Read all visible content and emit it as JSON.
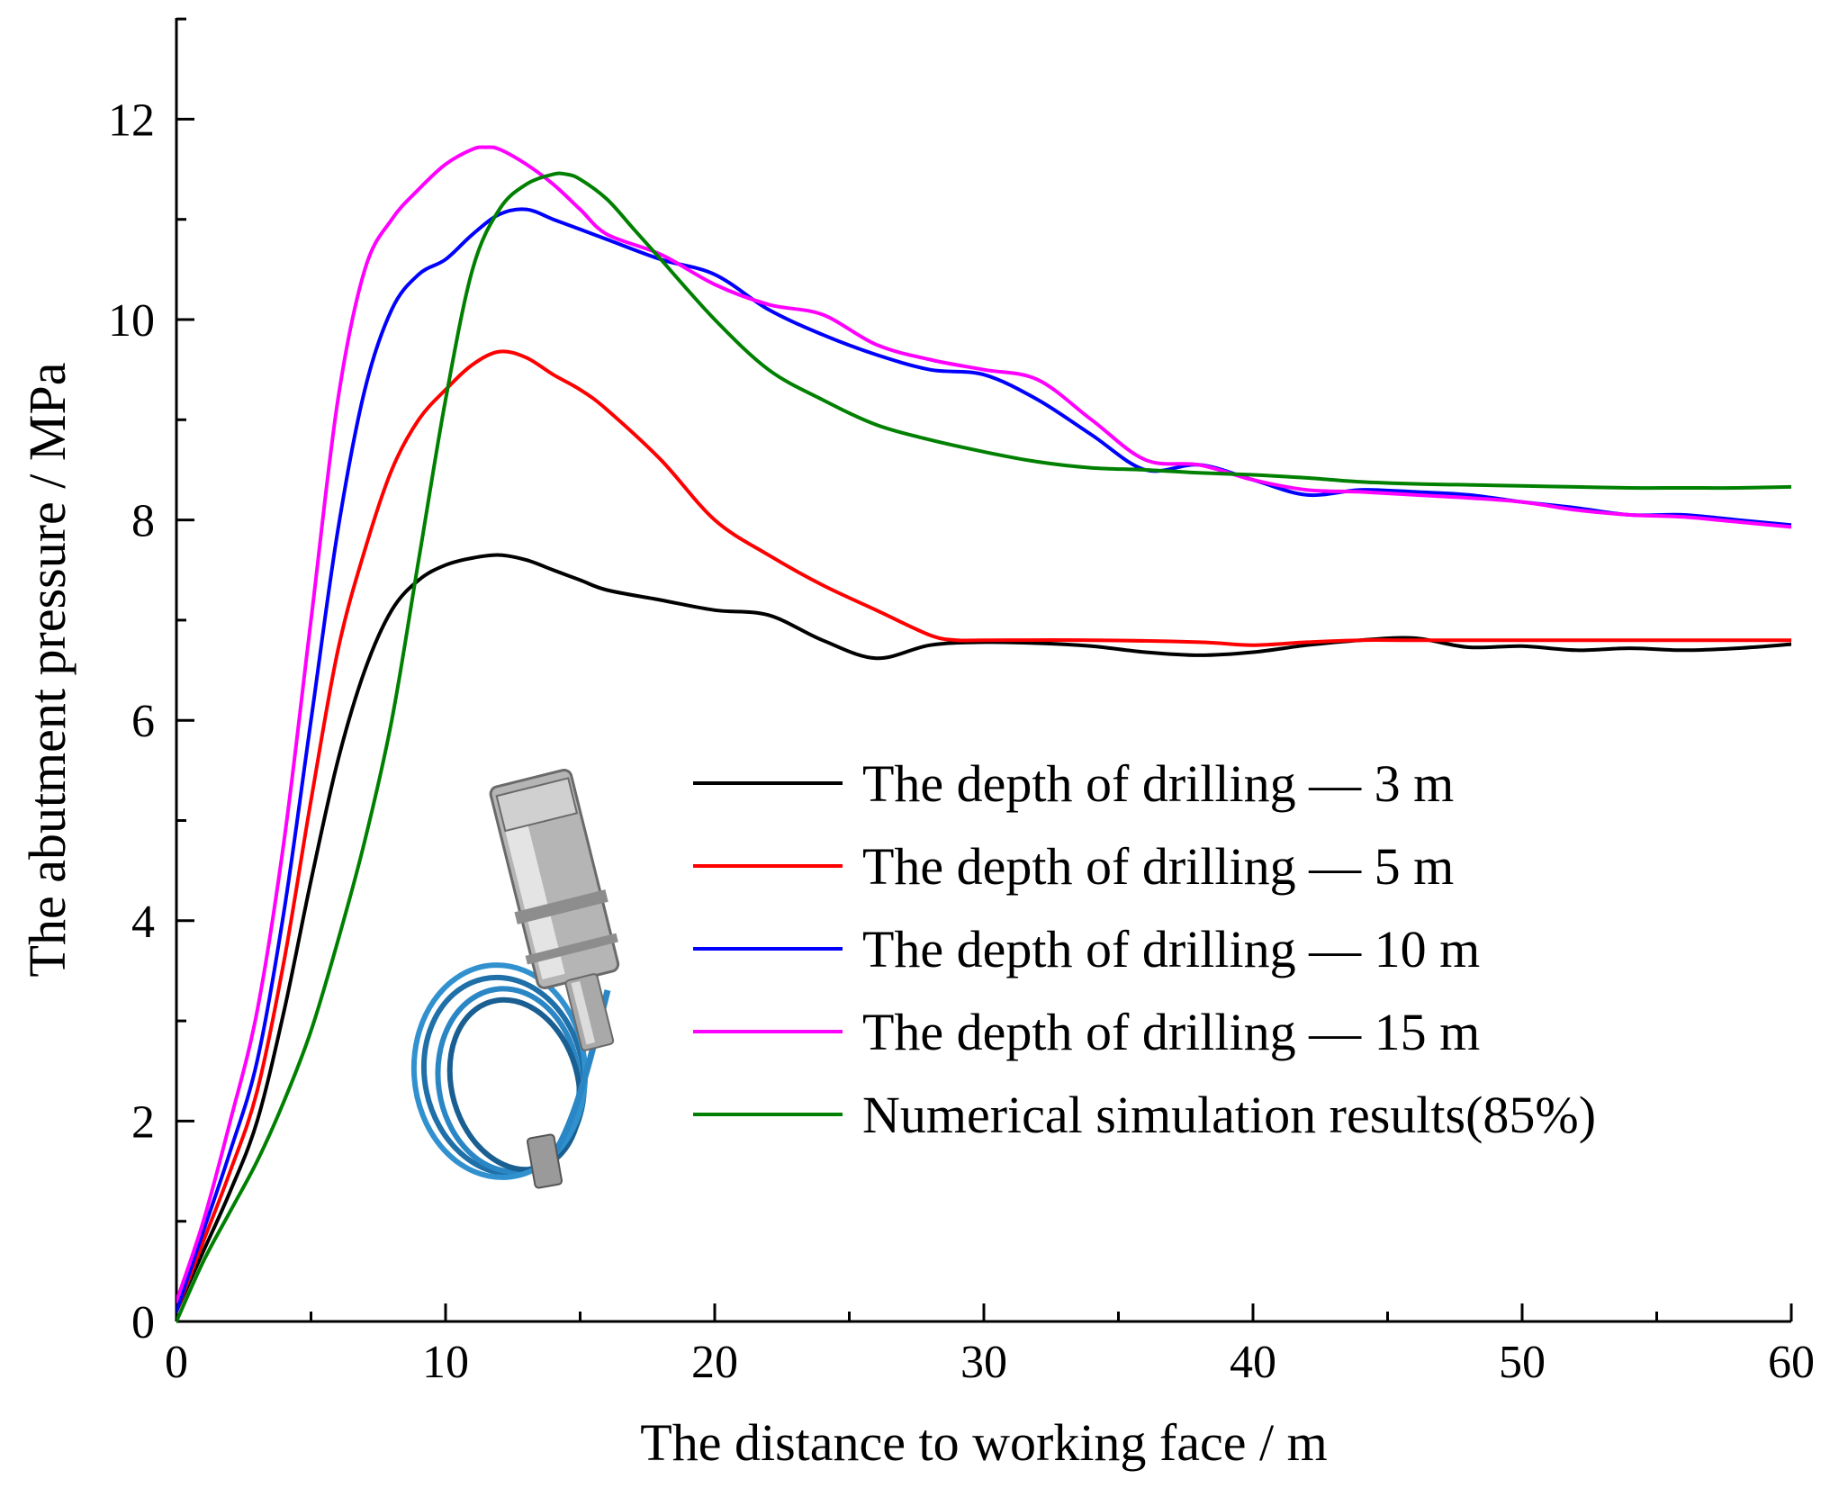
{
  "chart_data": {
    "type": "line",
    "title": "",
    "xlabel": "The distance to working face / m",
    "ylabel": "The abutment pressure / MPa",
    "xlim": [
      0,
      60
    ],
    "ylim": [
      0,
      13
    ],
    "xticks": [
      0,
      10,
      20,
      30,
      40,
      50,
      60
    ],
    "yticks": [
      0,
      2,
      4,
      6,
      8,
      10,
      12
    ],
    "grid": false,
    "legend_position": "center-right",
    "inset_image": "pressure-sensor-with-blue-cable",
    "series": [
      {
        "name": "The depth of drilling — 3 m",
        "color": "#000000",
        "x": [
          0,
          1,
          2,
          3,
          4,
          5,
          6,
          7,
          8,
          9,
          10,
          11,
          12,
          13,
          14,
          15,
          16,
          18,
          20,
          22,
          24,
          26,
          28,
          30,
          32,
          34,
          36,
          38,
          40,
          42,
          44,
          46,
          48,
          50,
          52,
          54,
          56,
          58,
          60
        ],
        "values": [
          0.1,
          0.7,
          1.3,
          2.0,
          3.1,
          4.4,
          5.6,
          6.5,
          7.1,
          7.4,
          7.55,
          7.62,
          7.65,
          7.6,
          7.5,
          7.4,
          7.3,
          7.2,
          7.1,
          7.05,
          6.8,
          6.62,
          6.75,
          6.78,
          6.77,
          6.74,
          6.68,
          6.65,
          6.68,
          6.75,
          6.8,
          6.82,
          6.73,
          6.74,
          6.7,
          6.72,
          6.7,
          6.72,
          6.76
        ]
      },
      {
        "name": "The depth of drilling — 5 m",
        "color": "#ff0000",
        "x": [
          0,
          1,
          2,
          3,
          4,
          5,
          6,
          7,
          8,
          9,
          10,
          11,
          12,
          13,
          14,
          15,
          16,
          18,
          20,
          22,
          24,
          26,
          28,
          29,
          30,
          34,
          38,
          40,
          42,
          44,
          46,
          50,
          54,
          58,
          60
        ],
        "values": [
          0.1,
          0.8,
          1.5,
          2.3,
          3.6,
          5.2,
          6.7,
          7.7,
          8.5,
          9.0,
          9.3,
          9.55,
          9.68,
          9.62,
          9.45,
          9.3,
          9.1,
          8.6,
          8.0,
          7.65,
          7.35,
          7.1,
          6.85,
          6.8,
          6.8,
          6.8,
          6.78,
          6.75,
          6.78,
          6.8,
          6.8,
          6.8,
          6.8,
          6.8,
          6.8
        ]
      },
      {
        "name": "The depth of drilling — 10 m",
        "color": "#0000ff",
        "x": [
          0,
          1,
          2,
          3,
          4,
          5,
          6,
          7,
          8,
          9,
          10,
          11,
          12,
          13,
          14,
          15,
          16,
          18,
          20,
          22,
          24,
          26,
          28,
          30,
          32,
          34,
          36,
          38,
          40,
          42,
          44,
          46,
          48,
          50,
          52,
          54,
          56,
          58,
          60
        ],
        "values": [
          0.1,
          0.9,
          1.7,
          2.6,
          4.1,
          6.0,
          7.9,
          9.3,
          10.1,
          10.45,
          10.6,
          10.85,
          11.05,
          11.1,
          11.0,
          10.9,
          10.8,
          10.6,
          10.45,
          10.1,
          9.85,
          9.65,
          9.5,
          9.45,
          9.2,
          8.85,
          8.5,
          8.55,
          8.4,
          8.25,
          8.3,
          8.28,
          8.25,
          8.18,
          8.12,
          8.05,
          8.05,
          8.0,
          7.95
        ]
      },
      {
        "name": "The depth of drilling — 15 m",
        "color": "#ff00ff",
        "x": [
          0,
          1,
          2,
          3,
          4,
          5,
          6,
          7,
          8,
          9,
          10,
          11,
          11.5,
          12,
          13,
          14,
          15,
          16,
          18,
          20,
          22,
          24,
          26,
          28,
          30,
          32,
          34,
          36,
          38,
          40,
          42,
          44,
          46,
          48,
          50,
          52,
          54,
          56,
          58,
          60
        ],
        "values": [
          0.2,
          1.0,
          2.0,
          3.1,
          4.8,
          7.0,
          9.2,
          10.5,
          11.0,
          11.3,
          11.55,
          11.7,
          11.72,
          11.7,
          11.55,
          11.35,
          11.1,
          10.85,
          10.65,
          10.35,
          10.15,
          10.05,
          9.75,
          9.6,
          9.5,
          9.4,
          9.0,
          8.6,
          8.55,
          8.4,
          8.3,
          8.28,
          8.25,
          8.22,
          8.18,
          8.1,
          8.05,
          8.03,
          7.98,
          7.93
        ]
      },
      {
        "name": "Numerical simulation results(85%)",
        "color": "#008000",
        "x": [
          0,
          1,
          2,
          3,
          4,
          5,
          6,
          7,
          8,
          9,
          10,
          11,
          12,
          13,
          14,
          14.5,
          15,
          16,
          17,
          18,
          20,
          22,
          24,
          26,
          28,
          30,
          32,
          34,
          36,
          38,
          40,
          42,
          44,
          46,
          48,
          50,
          52,
          54,
          56,
          58,
          60
        ],
        "values": [
          0.0,
          0.6,
          1.1,
          1.6,
          2.2,
          2.9,
          3.8,
          4.8,
          6.0,
          7.6,
          9.2,
          10.5,
          11.1,
          11.35,
          11.45,
          11.45,
          11.4,
          11.2,
          10.9,
          10.6,
          10.0,
          9.5,
          9.2,
          8.95,
          8.8,
          8.68,
          8.58,
          8.52,
          8.5,
          8.47,
          8.45,
          8.42,
          8.38,
          8.36,
          8.35,
          8.34,
          8.33,
          8.32,
          8.32,
          8.32,
          8.33
        ]
      }
    ]
  }
}
